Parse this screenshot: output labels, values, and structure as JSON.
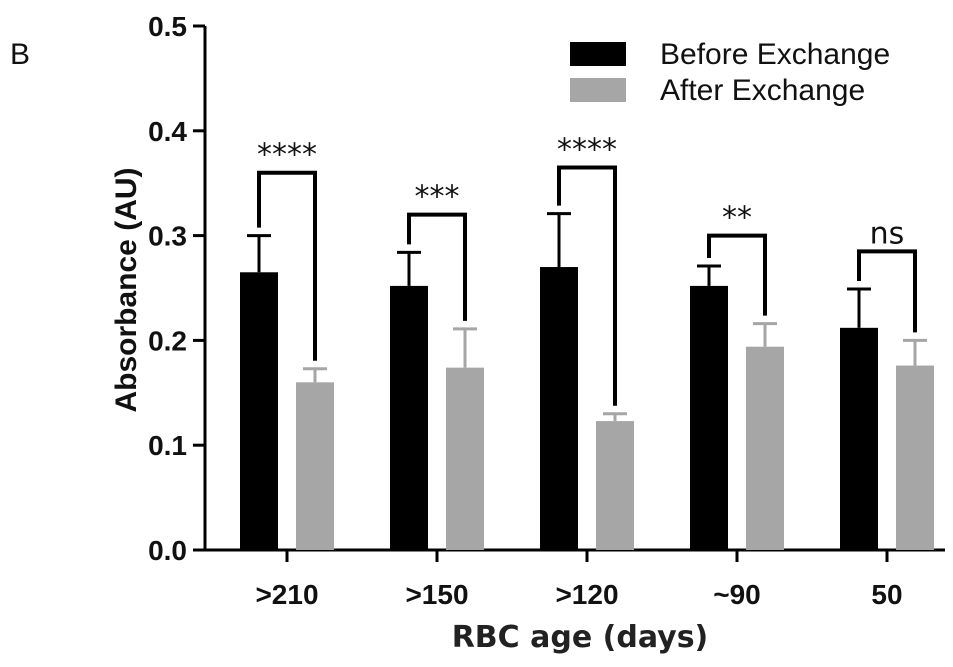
{
  "panel_label": "B",
  "chart_data": {
    "type": "bar",
    "title": "",
    "xlabel": "RBC age (days)",
    "ylabel": "Absorbance (AU)",
    "ylim": [
      0,
      0.5
    ],
    "yticks": [
      "0.0",
      "0.1",
      "0.2",
      "0.3",
      "0.4",
      "0.5"
    ],
    "categories": [
      ">210",
      ">150",
      ">120",
      "~90",
      "50"
    ],
    "legend_position": "top-right",
    "series": [
      {
        "name": "Before Exchange",
        "color": "#000000",
        "values": [
          0.265,
          0.252,
          0.27,
          0.252,
          0.212
        ],
        "errors": [
          0.035,
          0.032,
          0.051,
          0.019,
          0.037
        ]
      },
      {
        "name": "After Exchange",
        "color": "#a6a6a6",
        "values": [
          0.16,
          0.174,
          0.123,
          0.194,
          0.176
        ],
        "errors": [
          0.013,
          0.037,
          0.007,
          0.022,
          0.024
        ]
      }
    ],
    "significance": [
      "****",
      "***",
      "****",
      "**",
      "ns"
    ],
    "bracket_heights": [
      0.36,
      0.32,
      0.365,
      0.3,
      0.285
    ]
  }
}
